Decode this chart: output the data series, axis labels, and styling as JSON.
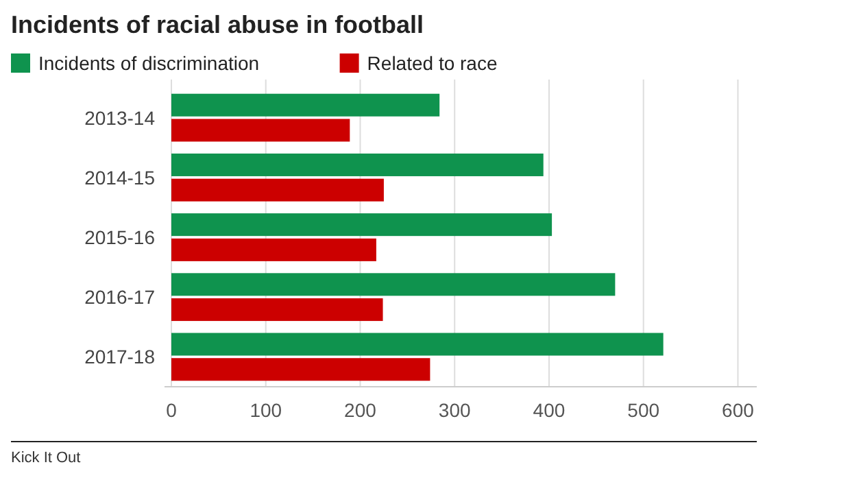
{
  "chart_data": {
    "type": "bar",
    "orientation": "horizontal",
    "title": "Incidents of racial abuse in football",
    "categories": [
      "2013-14",
      "2014-15",
      "2015-16",
      "2016-17",
      "2017-18"
    ],
    "series": [
      {
        "name": "Incidents of discrimination",
        "color": "#0f934e",
        "values": [
          284,
          394,
          403,
          470,
          521
        ]
      },
      {
        "name": "Related to race",
        "color": "#cc0000",
        "values": [
          189,
          225,
          217,
          224,
          274
        ]
      }
    ],
    "xlim": [
      0,
      620
    ],
    "xticks": [
      0,
      100,
      200,
      300,
      400,
      500,
      600
    ],
    "grid": "x",
    "legend": "top left",
    "annotations": [
      "Kick It Out"
    ]
  }
}
